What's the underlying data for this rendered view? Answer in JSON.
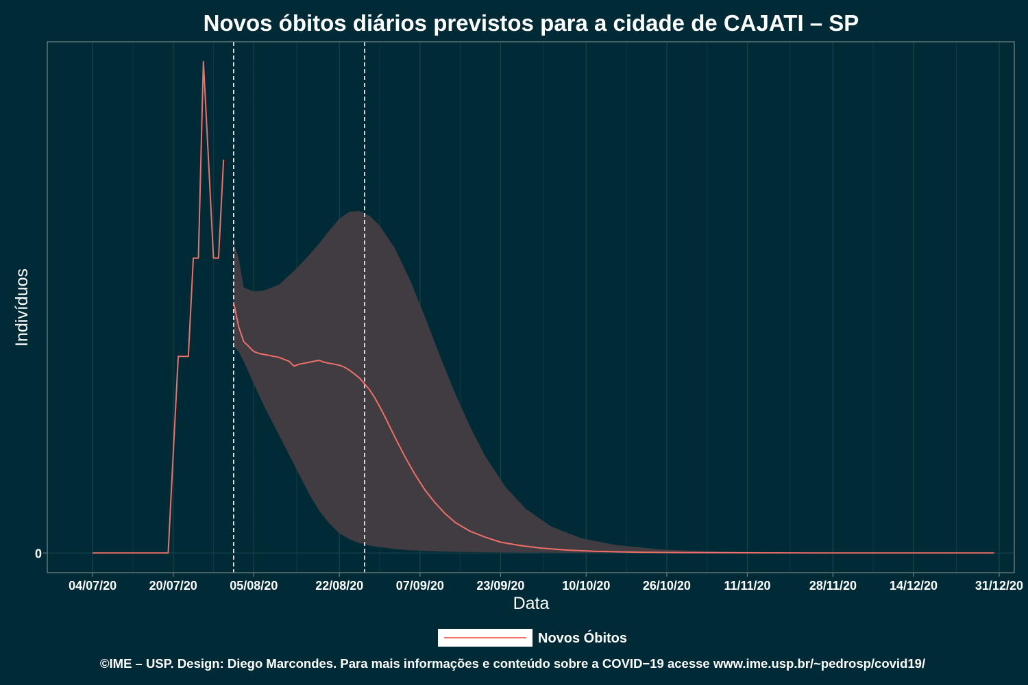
{
  "chart_data": {
    "type": "line",
    "title": "Novos óbitos diários previstos para a cidade de CAJATI – SP",
    "xlabel": "Data",
    "ylabel": "Indivíduos",
    "x_ticks": [
      "04/07/20",
      "20/07/20",
      "05/08/20",
      "22/08/20",
      "07/09/20",
      "23/09/20",
      "10/10/20",
      "26/10/20",
      "11/11/20",
      "28/11/20",
      "14/12/20",
      "31/12/20"
    ],
    "y_ticks": [
      "0"
    ],
    "xlim": [
      "2020-06-25",
      "2021-01-03"
    ],
    "ylim": [
      -0.2,
      5.2
    ],
    "grid": true,
    "legend_position": "bottom",
    "vlines": [
      "2020-08-01",
      "2020-08-27"
    ],
    "series": [
      {
        "name": "Novos Óbitos",
        "color": "#f07067",
        "points": [
          [
            "2020-07-04",
            0
          ],
          [
            "2020-07-05",
            0
          ],
          [
            "2020-07-06",
            0
          ],
          [
            "2020-07-07",
            0
          ],
          [
            "2020-07-08",
            0
          ],
          [
            "2020-07-09",
            0
          ],
          [
            "2020-07-10",
            0
          ],
          [
            "2020-07-11",
            0
          ],
          [
            "2020-07-12",
            0
          ],
          [
            "2020-07-13",
            0
          ],
          [
            "2020-07-14",
            0
          ],
          [
            "2020-07-15",
            0
          ],
          [
            "2020-07-16",
            0
          ],
          [
            "2020-07-17",
            0
          ],
          [
            "2020-07-18",
            0
          ],
          [
            "2020-07-19",
            0
          ],
          [
            "2020-07-20",
            1
          ],
          [
            "2020-07-21",
            2
          ],
          [
            "2020-07-22",
            2
          ],
          [
            "2020-07-23",
            2
          ],
          [
            "2020-07-24",
            3
          ],
          [
            "2020-07-25",
            3
          ],
          [
            "2020-07-26",
            5
          ],
          [
            "2020-07-27",
            4
          ],
          [
            "2020-07-28",
            3
          ],
          [
            "2020-07-29",
            3
          ],
          [
            "2020-07-30",
            4
          ]
        ]
      },
      {
        "name": "",
        "color": "#f07067",
        "points": [
          [
            "2020-08-01",
            2.55
          ],
          [
            "2020-08-02",
            2.3
          ],
          [
            "2020-08-03",
            2.15
          ],
          [
            "2020-08-04",
            2.1
          ],
          [
            "2020-08-05",
            2.05
          ],
          [
            "2020-08-06",
            2.03
          ],
          [
            "2020-08-07",
            2.02
          ],
          [
            "2020-08-08",
            2.01
          ],
          [
            "2020-08-09",
            2.0
          ],
          [
            "2020-08-10",
            1.99
          ],
          [
            "2020-08-11",
            1.97
          ],
          [
            "2020-08-12",
            1.95
          ],
          [
            "2020-08-13",
            1.9
          ],
          [
            "2020-08-14",
            1.92
          ],
          [
            "2020-08-15",
            1.93
          ],
          [
            "2020-08-16",
            1.94
          ],
          [
            "2020-08-17",
            1.95
          ],
          [
            "2020-08-18",
            1.96
          ],
          [
            "2020-08-19",
            1.94
          ],
          [
            "2020-08-20",
            1.93
          ],
          [
            "2020-08-21",
            1.92
          ],
          [
            "2020-08-22",
            1.91
          ],
          [
            "2020-08-23",
            1.89
          ],
          [
            "2020-08-24",
            1.86
          ],
          [
            "2020-08-25",
            1.82
          ],
          [
            "2020-08-26",
            1.78
          ],
          [
            "2020-08-27",
            1.72
          ],
          [
            "2020-08-28",
            1.66
          ],
          [
            "2020-08-29",
            1.58
          ],
          [
            "2020-08-30",
            1.49
          ],
          [
            "2020-08-31",
            1.39
          ],
          [
            "2020-09-02",
            1.18
          ],
          [
            "2020-09-04",
            0.98
          ],
          [
            "2020-09-06",
            0.8
          ],
          [
            "2020-09-08",
            0.64
          ],
          [
            "2020-09-10",
            0.51
          ],
          [
            "2020-09-12",
            0.4
          ],
          [
            "2020-09-14",
            0.31
          ],
          [
            "2020-09-17",
            0.22
          ],
          [
            "2020-09-20",
            0.16
          ],
          [
            "2020-09-23",
            0.11
          ],
          [
            "2020-09-27",
            0.075
          ],
          [
            "2020-10-01",
            0.05
          ],
          [
            "2020-10-06",
            0.03
          ],
          [
            "2020-10-12",
            0.017
          ],
          [
            "2020-10-20",
            0.008
          ],
          [
            "2020-10-30",
            0.004
          ],
          [
            "2020-11-10",
            0.002
          ],
          [
            "2020-11-25",
            0.001
          ],
          [
            "2020-12-10",
            0.0
          ],
          [
            "2020-12-30",
            0.0
          ]
        ]
      }
    ],
    "band": {
      "color": "#403c42",
      "points": [
        [
          "2020-08-01",
          2.1,
          3.15
        ],
        [
          "2020-08-02",
          2.05,
          3.0
        ],
        [
          "2020-08-03",
          1.95,
          2.7
        ],
        [
          "2020-08-05",
          1.72,
          2.66
        ],
        [
          "2020-08-07",
          1.5,
          2.67
        ],
        [
          "2020-08-10",
          1.2,
          2.73
        ],
        [
          "2020-08-13",
          0.9,
          2.87
        ],
        [
          "2020-08-16",
          0.6,
          3.03
        ],
        [
          "2020-08-18",
          0.43,
          3.15
        ],
        [
          "2020-08-20",
          0.3,
          3.28
        ],
        [
          "2020-08-22",
          0.2,
          3.4
        ],
        [
          "2020-08-24",
          0.14,
          3.47
        ],
        [
          "2020-08-26",
          0.1,
          3.48
        ],
        [
          "2020-08-28",
          0.075,
          3.43
        ],
        [
          "2020-08-30",
          0.06,
          3.33
        ],
        [
          "2020-09-02",
          0.04,
          3.1
        ],
        [
          "2020-09-05",
          0.028,
          2.78
        ],
        [
          "2020-09-08",
          0.02,
          2.4
        ],
        [
          "2020-09-11",
          0.015,
          2.0
        ],
        [
          "2020-09-14",
          0.012,
          1.62
        ],
        [
          "2020-09-17",
          0.01,
          1.28
        ],
        [
          "2020-09-20",
          0.008,
          0.98
        ],
        [
          "2020-09-24",
          0.006,
          0.67
        ],
        [
          "2020-09-28",
          0.005,
          0.45
        ],
        [
          "2020-10-03",
          0.004,
          0.27
        ],
        [
          "2020-10-09",
          0.003,
          0.15
        ],
        [
          "2020-10-16",
          0.002,
          0.08
        ],
        [
          "2020-10-25",
          0.001,
          0.035
        ],
        [
          "2020-11-05",
          0.0,
          0.015
        ],
        [
          "2020-11-20",
          0.0,
          0.005
        ],
        [
          "2020-12-10",
          0.0,
          0.001
        ],
        [
          "2020-12-30",
          0.0,
          0.0
        ]
      ]
    },
    "legend": [
      {
        "label": "Novos Óbitos",
        "color": "#f07067"
      }
    ]
  },
  "footer": "©IME – USP. Design: Diego Marcondes. Para mais informações e conteúdo sobre a COVID−19 acesse www.ime.usp.br/~pedrosp/covid19/",
  "colors": {
    "background": "#002b36",
    "band": "#403c42",
    "line": "#f07067",
    "text": "#ffffff",
    "vline": "#ffffff"
  }
}
